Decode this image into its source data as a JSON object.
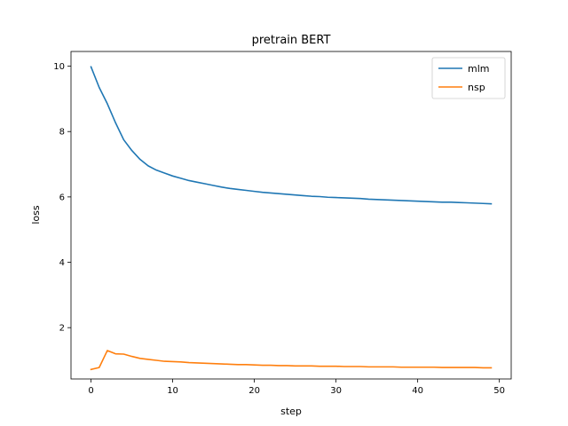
{
  "chart_data": {
    "type": "line",
    "title": "pretrain BERT",
    "xlabel": "step",
    "ylabel": "loss",
    "xlim": [
      -2.45,
      51.45
    ],
    "ylim": [
      0.43,
      10.45
    ],
    "xticks": [
      0,
      10,
      20,
      30,
      40,
      50
    ],
    "yticks": [
      2,
      4,
      6,
      8,
      10
    ],
    "grid": false,
    "legend": "upper right",
    "x": [
      0,
      1,
      2,
      3,
      4,
      5,
      6,
      7,
      8,
      9,
      10,
      11,
      12,
      13,
      14,
      15,
      16,
      17,
      18,
      19,
      20,
      21,
      22,
      23,
      24,
      25,
      26,
      27,
      28,
      29,
      30,
      31,
      32,
      33,
      34,
      35,
      36,
      37,
      38,
      39,
      40,
      41,
      42,
      43,
      44,
      45,
      46,
      47,
      48,
      49
    ],
    "series": [
      {
        "name": "mlm",
        "color": "#1f77b4",
        "values": [
          9.98,
          9.35,
          8.85,
          8.27,
          7.75,
          7.42,
          7.15,
          6.95,
          6.82,
          6.73,
          6.64,
          6.57,
          6.5,
          6.45,
          6.4,
          6.35,
          6.3,
          6.26,
          6.23,
          6.2,
          6.17,
          6.14,
          6.12,
          6.1,
          6.08,
          6.06,
          6.04,
          6.02,
          6.01,
          5.99,
          5.98,
          5.97,
          5.96,
          5.95,
          5.93,
          5.92,
          5.91,
          5.9,
          5.89,
          5.88,
          5.87,
          5.86,
          5.85,
          5.84,
          5.84,
          5.83,
          5.82,
          5.81,
          5.8,
          5.79
        ]
      },
      {
        "name": "nsp",
        "color": "#ff7f0e",
        "values": [
          0.72,
          0.78,
          1.3,
          1.2,
          1.19,
          1.12,
          1.06,
          1.03,
          1.0,
          0.97,
          0.96,
          0.95,
          0.93,
          0.92,
          0.91,
          0.9,
          0.89,
          0.88,
          0.87,
          0.87,
          0.86,
          0.85,
          0.85,
          0.84,
          0.84,
          0.83,
          0.83,
          0.83,
          0.82,
          0.82,
          0.82,
          0.81,
          0.81,
          0.81,
          0.8,
          0.8,
          0.8,
          0.8,
          0.79,
          0.79,
          0.79,
          0.79,
          0.79,
          0.78,
          0.78,
          0.78,
          0.78,
          0.78,
          0.77,
          0.77
        ]
      }
    ]
  }
}
